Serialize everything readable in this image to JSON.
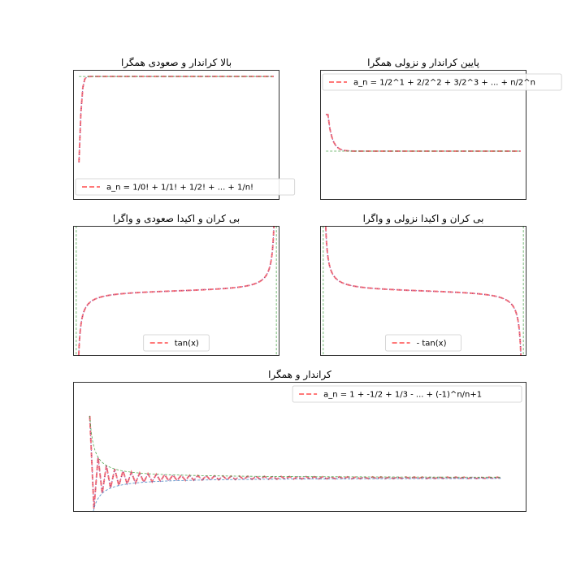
{
  "chart_data": [
    {
      "type": "line",
      "title": "بالا کراندار و صعودی همگرا",
      "legend": {
        "placement": "lower-right",
        "entries": [
          "a_n = 1/0! + 1/1! + 1/2! + ... + 1/n!"
        ]
      },
      "series": [
        {
          "name": "a_n = 1/0! + 1/1! + 1/2! + ... + 1/n!",
          "role": "sequence",
          "x": [
            0,
            1,
            2,
            3,
            4,
            5,
            6,
            7,
            8,
            9,
            10,
            15,
            20,
            30,
            40,
            50,
            60,
            70,
            80,
            90,
            100
          ],
          "y": [
            1.0,
            2.0,
            2.5,
            2.6667,
            2.7083,
            2.7167,
            2.7181,
            2.7183,
            2.7183,
            2.7183,
            2.7183,
            2.7183,
            2.7183,
            2.7183,
            2.7183,
            2.7183,
            2.7183,
            2.7183,
            2.7183,
            2.7183,
            2.7183
          ]
        },
        {
          "role": "limit",
          "x": [
            0,
            100
          ],
          "y": [
            2.7183,
            2.7183
          ]
        }
      ],
      "xlim": [
        -3,
        103
      ],
      "ylim": [
        0.25,
        2.85
      ],
      "grid": false
    },
    {
      "type": "line",
      "title": "پایین کراندار و نزولی همگرا",
      "legend": {
        "placement": "top-right",
        "entries": [
          "a_n = 1/2^1 + 2/2^2 + 3/2^3 + ... + n/2^n"
        ]
      },
      "series": [
        {
          "name": "a_n = 1/2^1 + 2/2^2 + 3/2^3 + ... + n/2^n",
          "role": "sequence",
          "x": [
            0,
            1,
            2,
            3,
            4,
            5,
            6,
            7,
            8,
            9,
            10,
            12,
            15,
            20,
            30,
            40,
            60,
            80,
            100
          ],
          "y": [
            2.9,
            2.9,
            2.55,
            2.35,
            2.22,
            2.14,
            2.09,
            2.055,
            2.035,
            2.02,
            2.012,
            2.005,
            2.001,
            2.0,
            2.0,
            2.0,
            2.0,
            2.0,
            2.0
          ]
        },
        {
          "role": "limit",
          "x": [
            0,
            100
          ],
          "y": [
            2.0,
            2.0
          ]
        }
      ],
      "xlim": [
        -3,
        103
      ],
      "ylim": [
        0.8,
        4.0
      ],
      "grid": false
    },
    {
      "type": "line",
      "title": "بی کران و اکیدا صعودی و واگرا",
      "legend": {
        "placement": "lower-center",
        "entries": [
          "tan(x)"
        ]
      },
      "series": [
        {
          "name": "tan(x)",
          "role": "function",
          "fn": "tan",
          "x_range": [
            -1.563,
            1.563
          ]
        },
        {
          "role": "asymptote",
          "x": [
            -1.5708,
            -1.5708
          ],
          "y": [
            -40,
            40
          ]
        },
        {
          "role": "asymptote",
          "x": [
            1.5708,
            1.5708
          ],
          "y": [
            -40,
            40
          ]
        }
      ],
      "xlim": [
        -1.62,
        1.62
      ],
      "ylim": [
        -26,
        26
      ],
      "grid": false
    },
    {
      "type": "line",
      "title": "بی کران و اکیدا نزولی و واگرا",
      "legend": {
        "placement": "lower-center",
        "entries": [
          "- tan(x)"
        ]
      },
      "series": [
        {
          "name": "- tan(x)",
          "role": "function",
          "fn": "-tan",
          "x_range": [
            -1.563,
            1.563
          ]
        },
        {
          "role": "asymptote",
          "x": [
            -1.5708,
            -1.5708
          ],
          "y": [
            -40,
            40
          ]
        },
        {
          "role": "asymptote",
          "x": [
            1.5708,
            1.5708
          ],
          "y": [
            -40,
            40
          ]
        }
      ],
      "xlim": [
        -1.62,
        1.62
      ],
      "ylim": [
        -26,
        26
      ],
      "grid": false
    },
    {
      "type": "line",
      "title": "کراندار و همگرا",
      "legend": {
        "placement": "top-right",
        "entries": [
          "a_n = 1 + -1/2 + 1/3 - ... + (-1)^n/n+1"
        ]
      },
      "series": [
        {
          "name": "a_n = 1 + -1/2 + 1/3 - ... + (-1)^n/n+1",
          "role": "sequence",
          "fn": "alternating",
          "x_range": [
            1,
            100
          ]
        },
        {
          "role": "upper_bound",
          "fn": "upper",
          "x_range": [
            1,
            100
          ]
        },
        {
          "role": "lower_bound",
          "fn": "lower",
          "x_range": [
            1.5,
            100
          ]
        }
      ],
      "xlim": [
        -3,
        106
      ],
      "ylim": [
        -0.55,
        1.55
      ],
      "grid": false
    }
  ]
}
